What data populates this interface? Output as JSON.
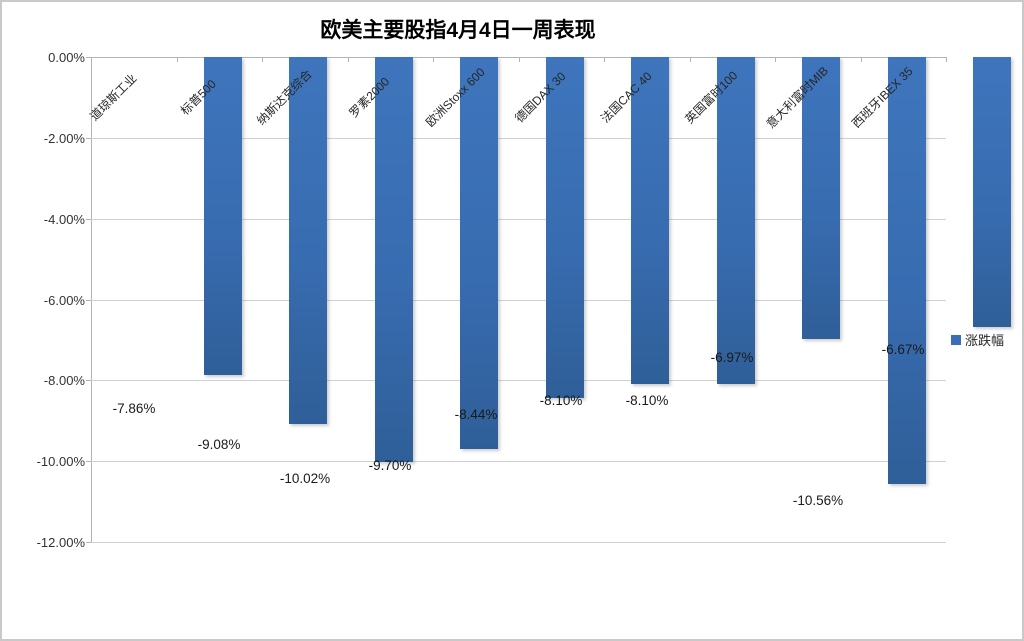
{
  "window": {
    "background": "#ffffff",
    "border_color": "#c9c9c9"
  },
  "chart_data": {
    "type": "bar",
    "title": "欧美主要股指4月4日一周表现",
    "categories": [
      "道琼斯工业",
      "标普500",
      "纳斯达克综合",
      "罗素2000",
      "欧洲Stoxx 600",
      "德国DAX 30",
      "法国CAC 40",
      "英国富时100",
      "意大利富时MIB",
      "西班牙IBEX 35"
    ],
    "series": [
      {
        "name": "涨跌幅",
        "values": [
          -7.86,
          -9.08,
          -10.02,
          -9.7,
          -8.44,
          -8.1,
          -8.1,
          -6.97,
          -10.56,
          -6.67
        ]
      }
    ],
    "data_labels": [
      "-7.86%",
      "-9.08%",
      "-10.02%",
      "-9.70%",
      "-8.44%",
      "-8.10%",
      "-8.10%",
      "-6.97%",
      "-10.56%",
      "-6.67%"
    ],
    "y_ticks": [
      "0.00%",
      "-2.00%",
      "-4.00%",
      "-6.00%",
      "-8.00%",
      "-10.00%",
      "-12.00%"
    ],
    "ylim": [
      0,
      -12
    ],
    "xlabel": "",
    "ylabel": "",
    "grid": true,
    "legend_position": "right",
    "bar_color": "#3a6fb5",
    "bar_color_dark": "#2f5f98"
  }
}
